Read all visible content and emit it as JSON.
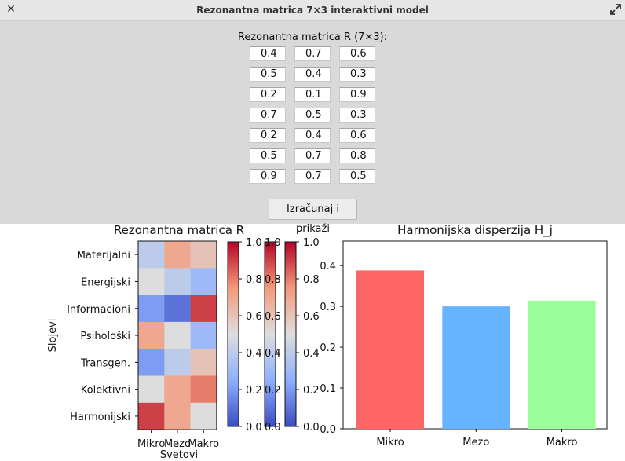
{
  "window": {
    "title": "Rezonantna matrica 7×3 interaktivni model"
  },
  "form": {
    "label": "Rezonantna matrica R (7×3):",
    "rows": [
      [
        "0.4",
        "0.7",
        "0.6"
      ],
      [
        "0.5",
        "0.4",
        "0.3"
      ],
      [
        "0.2",
        "0.1",
        "0.9"
      ],
      [
        "0.7",
        "0.5",
        "0.3"
      ],
      [
        "0.2",
        "0.4",
        "0.6"
      ],
      [
        "0.5",
        "0.7",
        "0.8"
      ],
      [
        "0.9",
        "0.7",
        "0.5"
      ]
    ],
    "button_label": "Izračunaj i prikaži"
  },
  "chart_data": [
    {
      "type": "heatmap",
      "title": "Rezonantna matrica R",
      "xlabel": "Svetovi",
      "ylabel": "Slojevi",
      "x_categories": [
        "Mikro",
        "Mezo",
        "Makro"
      ],
      "y_categories": [
        "Materijalni",
        "Energijski",
        "Informacioni",
        "Psihološki",
        "Transgen.",
        "Kolektivni",
        "Harmonijski"
      ],
      "values": [
        [
          0.4,
          0.7,
          0.6
        ],
        [
          0.5,
          0.4,
          0.3
        ],
        [
          0.2,
          0.1,
          0.9
        ],
        [
          0.7,
          0.5,
          0.3
        ],
        [
          0.2,
          0.4,
          0.6
        ],
        [
          0.5,
          0.7,
          0.8
        ],
        [
          0.9,
          0.7,
          0.5
        ]
      ],
      "colormap": "coolwarm",
      "colorbar_ticks": [
        "0.0",
        "0.2",
        "0.4",
        "0.6",
        "0.8",
        "1.0"
      ],
      "colorbar_count": 3
    },
    {
      "type": "bar",
      "title": "Harmonijska disperzija H_j",
      "categories": [
        "Mikro",
        "Mezo",
        "Makro"
      ],
      "values": [
        0.388,
        0.3,
        0.314
      ],
      "colors": [
        "#ff6666",
        "#66b3ff",
        "#99ff99"
      ],
      "ylim": [
        0,
        0.46
      ],
      "yticks": [
        "0.0",
        "0.1",
        "0.2",
        "0.3",
        "0.4"
      ]
    }
  ]
}
